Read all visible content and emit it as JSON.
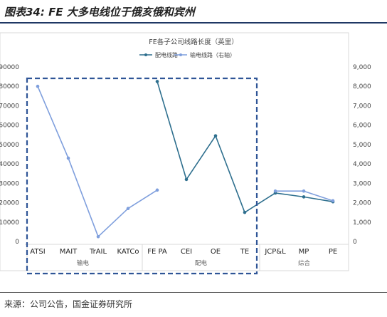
{
  "figure": {
    "title": "图表34: FE 大多电线位于俄亥俄和宾州",
    "source": "来源：公司公告，国金证券研究所"
  },
  "chart_data": {
    "type": "line",
    "title": "FE各子公司线路长度（英里）",
    "categories": [
      "ATSI",
      "MAIT",
      "TrAIL",
      "KATCo",
      "FE PA",
      "CEI",
      "OE",
      "TE",
      "JCP&L",
      "MP",
      "PE"
    ],
    "groups": [
      {
        "label": "输电",
        "categories": [
          "ATSI",
          "MAIT",
          "TrAIL",
          "KATCo"
        ]
      },
      {
        "label": "配电",
        "categories": [
          "FE PA",
          "CEI",
          "OE",
          "TE"
        ]
      },
      {
        "label": "综合",
        "categories": [
          "JCP&L",
          "MP",
          "PE"
        ]
      }
    ],
    "series": [
      {
        "name": "配电线路",
        "axis": "left",
        "color": "#2e6f8e",
        "values": [
          null,
          null,
          null,
          null,
          82500,
          32000,
          54500,
          15000,
          25000,
          23000,
          20500
        ]
      },
      {
        "name": "输电线路（右轴）",
        "axis": "right",
        "color": "#7f9fdd",
        "values": [
          8000,
          4300,
          250,
          1700,
          2650,
          null,
          null,
          null,
          2600,
          2600,
          2100
        ]
      }
    ],
    "y_left": {
      "ticks": [
        "0",
        "10000",
        "20000",
        "30000",
        "40000",
        "50000",
        "60000",
        "70000",
        "80000",
        "90000"
      ],
      "ylim": [
        0,
        90000
      ]
    },
    "y_right": {
      "ticks": [
        "0",
        "1,000",
        "2,000",
        "3,000",
        "4,000",
        "5,000",
        "6,000",
        "7,000",
        "8,000",
        "9,000"
      ],
      "ylim": [
        0,
        9000
      ]
    },
    "legend_position": "top",
    "grid": false,
    "highlight_box": "dashed border around 输电 and 配电 groups"
  }
}
